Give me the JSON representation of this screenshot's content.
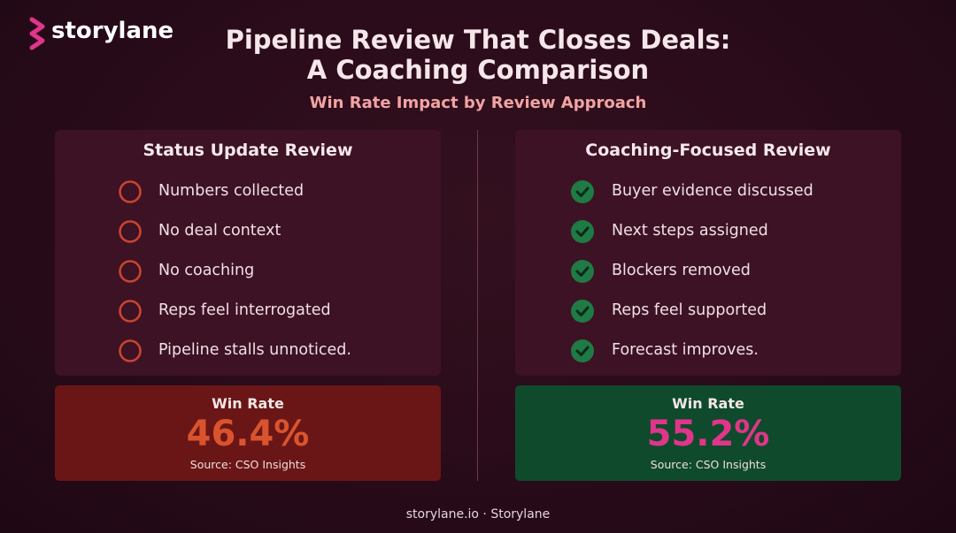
{
  "brand": "storylane",
  "header": {
    "title_line1": "Pipeline Review That Closes Deals:",
    "title_line2": "A Coaching Comparison",
    "subtitle": "Win Rate Impact by Review Approach"
  },
  "panels": [
    {
      "title": "Status Update Review",
      "items": [
        "Numbers collected",
        "No deal context",
        "No coaching",
        "Reps feel interrogated",
        "Pipeline stalls unnoticed."
      ],
      "metric_label": "Win Rate",
      "metric_value": "46.4%",
      "source": "Source: CSO Insights"
    },
    {
      "title": "Coaching-Focused Review",
      "items": [
        "Buyer evidence discussed",
        "Next steps assigned",
        "Blockers removed",
        "Reps feel supported",
        "Forecast improves."
      ],
      "metric_label": "Win Rate",
      "metric_value": "55.2%",
      "source": "Source: CSO Insights"
    }
  ],
  "footer": "storylane.io · Storylane"
}
